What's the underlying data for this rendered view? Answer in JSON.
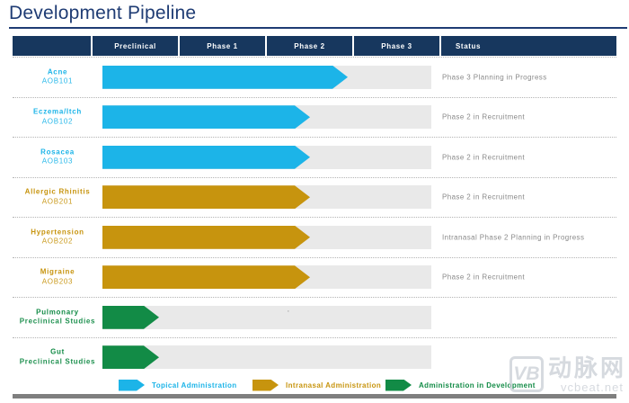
{
  "title": "Development Pipeline",
  "header": {
    "columns": [
      "",
      "Preclinical",
      "Phase 1",
      "Phase 2",
      "Phase 3",
      "Status"
    ]
  },
  "rows": [
    {
      "name": "Acne",
      "code": "AOB101",
      "type": "topical",
      "status": "Phase 3 Planning in Progress",
      "bar_style": "width:273px"
    },
    {
      "name": "Eczema/Itch",
      "code": "AOB102",
      "type": "topical",
      "status": "Phase 2 in Recruitment",
      "bar_style": "width:231px"
    },
    {
      "name": "Rosacea",
      "code": "AOB103",
      "type": "topical",
      "status": "Phase 2 in Recruitment",
      "bar_style": "width:231px"
    },
    {
      "name": "Allergic Rhinitis",
      "code": "AOB201",
      "type": "intranasal",
      "status": "Phase 2 in Recruitment",
      "bar_style": "width:231px"
    },
    {
      "name": "Hypertension",
      "code": "AOB202",
      "type": "intranasal",
      "status": "Intranasal Phase 2 Planning in Progress",
      "bar_style": "width:231px"
    },
    {
      "name": "Migraine",
      "code": "AOB203",
      "type": "intranasal",
      "status": "Phase 2 in Recruitment",
      "bar_style": "width:231px"
    },
    {
      "name": "Pulmonary",
      "code": "Preclinical Studies",
      "type": "development",
      "status": "",
      "bar_style": "width:63px"
    },
    {
      "name": "Gut",
      "code": "Preclinical Studies",
      "type": "development",
      "status": "",
      "bar_style": "width:63px"
    }
  ],
  "legend": [
    {
      "label": "Topical Administration",
      "type": "topical"
    },
    {
      "label": "Intranasal Administration",
      "type": "intranasal"
    },
    {
      "label": "Administration in Development",
      "type": "development"
    }
  ],
  "watermark": {
    "logo": "VB",
    "name": "动脉网",
    "domain": "vcbeat.net"
  },
  "stray_dot": "·",
  "colors": {
    "navy_header": "#17375E",
    "title_text": "#1F3C74",
    "topical": "#1CB4E8",
    "intranasal": "#C7940E",
    "development": "#128B46",
    "track_gray": "#E9E9E9",
    "status_text": "#8A8A8A",
    "bottom_bar": "#7F7F7F",
    "watermark_gray": "#C9CED5"
  },
  "chart_data": {
    "type": "bar",
    "orientation": "horizontal",
    "title": "Development Pipeline",
    "stages": [
      "Preclinical",
      "Phase 1",
      "Phase 2",
      "Phase 3"
    ],
    "stage_scale_note": "0 = start of Preclinical, 1 = end of Preclinical, 2 = end of Phase 1, 3 = end of Phase 2, 4 = end of Phase 3",
    "categories": [
      "Acne (AOB101)",
      "Eczema/Itch (AOB102)",
      "Rosacea (AOB103)",
      "Allergic Rhinitis (AOB201)",
      "Hypertension (AOB202)",
      "Migraine (AOB203)",
      "Pulmonary Preclinical Studies",
      "Gut Preclinical Studies"
    ],
    "values_stage_reached": [
      2.95,
      2.5,
      2.5,
      2.5,
      2.5,
      2.5,
      0.8,
      0.8
    ],
    "series_type": [
      "topical",
      "topical",
      "topical",
      "intranasal",
      "intranasal",
      "intranasal",
      "development",
      "development"
    ],
    "statuses": [
      "Phase 3 Planning in Progress",
      "Phase 2 in Recruitment",
      "Phase 2 in Recruitment",
      "Phase 2 in Recruitment",
      "Intranasal Phase 2 Planning in Progress",
      "Phase 2 in Recruitment",
      "",
      ""
    ],
    "legend": [
      "Topical Administration",
      "Intranasal Administration",
      "Administration in Development"
    ],
    "legend_position": "bottom",
    "xlim": [
      0,
      4
    ],
    "grid": false
  }
}
